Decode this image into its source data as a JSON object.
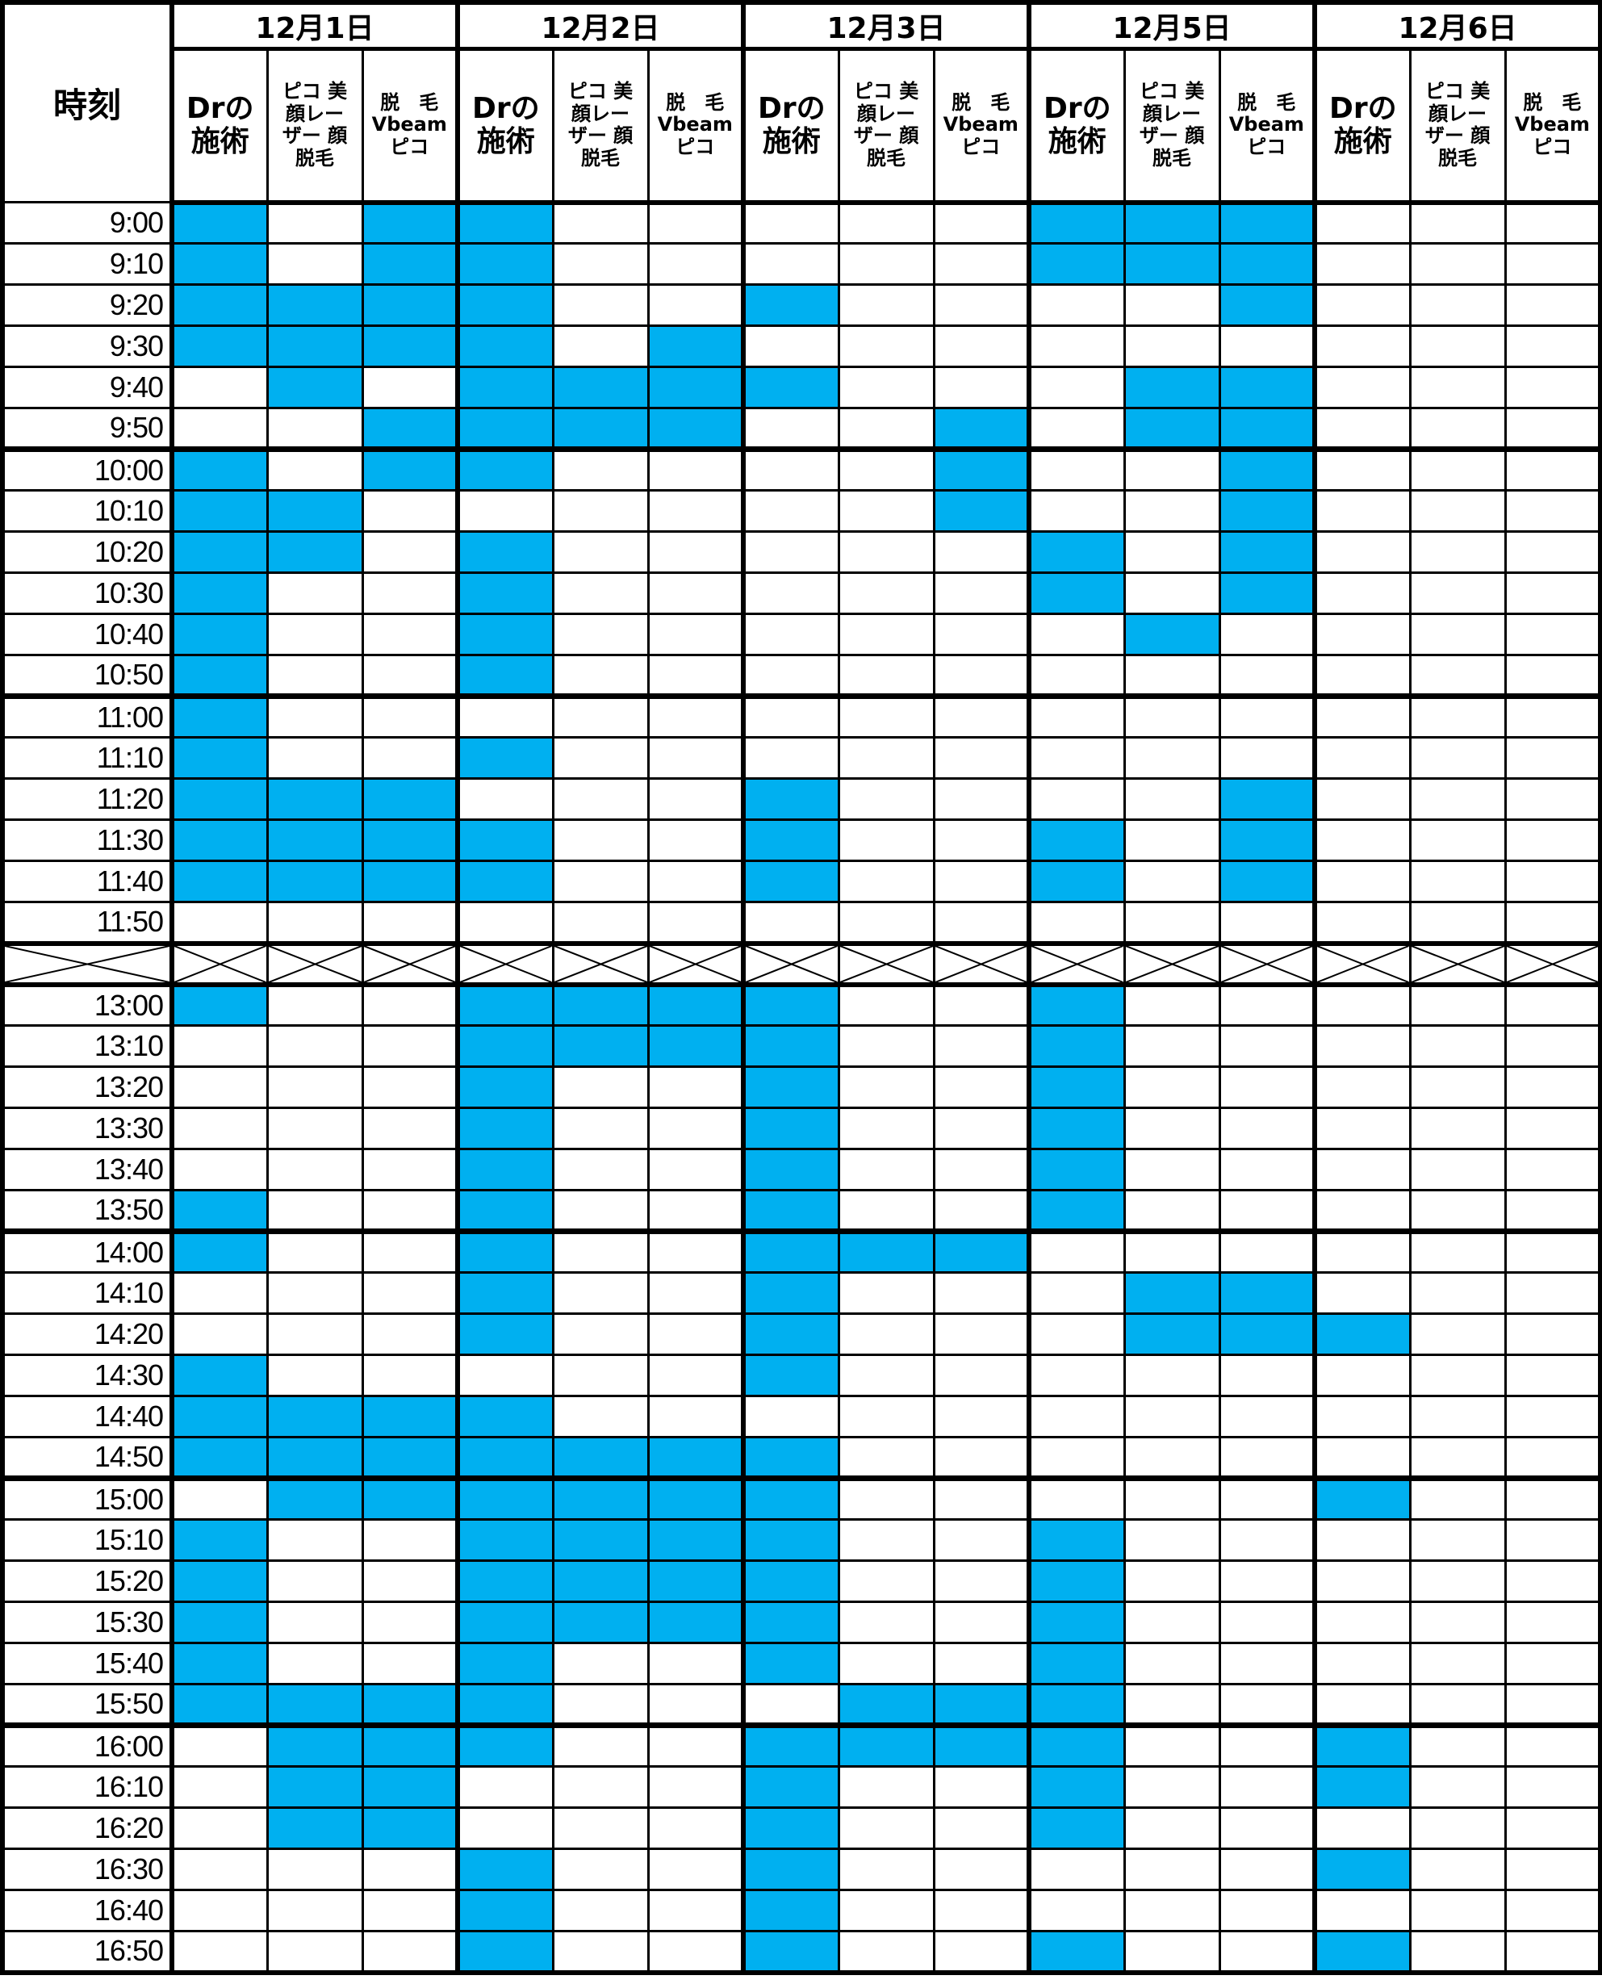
{
  "header": {
    "time_label": "時刻",
    "days": [
      "12月1日",
      "12月2日",
      "12月3日",
      "12月5日",
      "12月6日"
    ],
    "sub_columns": [
      {
        "line1": "Drの",
        "line2": "施術"
      },
      {
        "line1": "ピコ 美",
        "line2": "顔レー",
        "line3": "ザー 顔",
        "line4": "脱毛"
      },
      {
        "line1": "脱　毛",
        "line2": "Vbeam",
        "line3": "ピコ"
      }
    ]
  },
  "colors": {
    "booked": "#00b0f0",
    "free": "#ffffff"
  },
  "legend_note": "each row: 15 cells = 5 days × [Drの施術, ピコ美顔レーザー顔脱毛, 脱毛Vbeamピコ]; 1 = filled",
  "morning": [
    {
      "time": "9:00",
      "cells": "101100000111000"
    },
    {
      "time": "9:10",
      "cells": "101100000111000"
    },
    {
      "time": "9:20",
      "cells": "111100100001000"
    },
    {
      "time": "9:30",
      "cells": "111101000000000"
    },
    {
      "time": "9:40",
      "cells": "010111100011000"
    },
    {
      "time": "9:50",
      "cells": "001111001011000"
    },
    {
      "time": "10:00",
      "cells": "101100001001000"
    },
    {
      "time": "10:10",
      "cells": "110000001001000"
    },
    {
      "time": "10:20",
      "cells": "110100000101000"
    },
    {
      "time": "10:30",
      "cells": "100100000101000"
    },
    {
      "time": "10:40",
      "cells": "100100000010000"
    },
    {
      "time": "10:50",
      "cells": "100100000000000"
    },
    {
      "time": "11:00",
      "cells": "100000000000000"
    },
    {
      "time": "11:10",
      "cells": "100100000000000"
    },
    {
      "time": "11:20",
      "cells": "111000100001000"
    },
    {
      "time": "11:30",
      "cells": "111100100101000"
    },
    {
      "time": "11:40",
      "cells": "111100100101000"
    },
    {
      "time": "11:50",
      "cells": "000000000000000"
    }
  ],
  "afternoon": [
    {
      "time": "13:00",
      "cells": "100111100100000"
    },
    {
      "time": "13:10",
      "cells": "000111100100000"
    },
    {
      "time": "13:20",
      "cells": "000100100100000"
    },
    {
      "time": "13:30",
      "cells": "000100100100000"
    },
    {
      "time": "13:40",
      "cells": "000100100100000"
    },
    {
      "time": "13:50",
      "cells": "100100100100000"
    },
    {
      "time": "14:00",
      "cells": "100100111000000"
    },
    {
      "time": "14:10",
      "cells": "000100100011000"
    },
    {
      "time": "14:20",
      "cells": "000100100011100"
    },
    {
      "time": "14:30",
      "cells": "100000100000000"
    },
    {
      "time": "14:40",
      "cells": "111100000000000"
    },
    {
      "time": "14:50",
      "cells": "111111100000000"
    },
    {
      "time": "15:00",
      "cells": "011111100000100"
    },
    {
      "time": "15:10",
      "cells": "100111100100000"
    },
    {
      "time": "15:20",
      "cells": "100111100100000"
    },
    {
      "time": "15:30",
      "cells": "100111100100000"
    },
    {
      "time": "15:40",
      "cells": "100100100100000"
    },
    {
      "time": "15:50",
      "cells": "111100011100000"
    },
    {
      "time": "16:00",
      "cells": "011100111100100"
    },
    {
      "time": "16:10",
      "cells": "011000100100100"
    },
    {
      "time": "16:20",
      "cells": "011000100100000"
    },
    {
      "time": "16:30",
      "cells": "000100100000100"
    },
    {
      "time": "16:40",
      "cells": "000100100000000"
    },
    {
      "time": "16:50",
      "cells": "000100100100100"
    }
  ]
}
